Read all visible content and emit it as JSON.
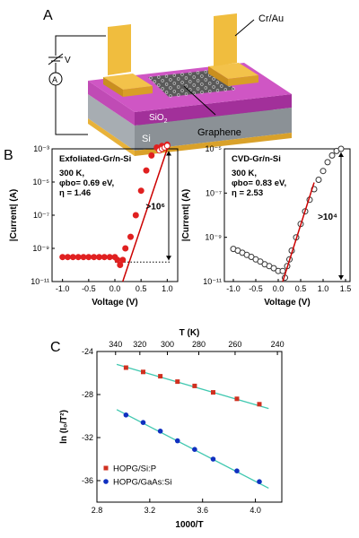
{
  "panels": {
    "a": {
      "letter": "A",
      "labels": {
        "contacts": "Cr/Au",
        "voltage": "V",
        "ammeter": "A",
        "oxide": "SiO",
        "oxide_sub": "2",
        "substrate": "Si",
        "sheet": "Graphene"
      },
      "colors": {
        "gold": "#e8b23a",
        "oxide": "#b23ea8",
        "silicon": "#9aa0a6",
        "sheet": "#555555"
      }
    },
    "b": {
      "letter": "B"
    },
    "c": {
      "letter": "C"
    }
  },
  "chart_data": [
    {
      "type": "scatter",
      "panel": "B-left",
      "title": "Exfoliated-Gr/n-Si",
      "annotations": [
        "300 K,",
        "φbo= 0.69 eV,",
        "η = 1.46",
        ">10⁶"
      ],
      "xlabel": "Voltage (V)",
      "ylabel": "|Current| (A)",
      "xlim": [
        -1.2,
        1.2
      ],
      "ylim_log10": [
        -11,
        -3
      ],
      "x_ticks": [
        "-1.0",
        "-0.5",
        "0.0",
        "0.5",
        "1.0"
      ],
      "y_ticks": [
        "10⁻¹¹",
        "10⁻⁹",
        "10⁻⁷",
        "10⁻⁵",
        "10⁻³"
      ],
      "series": [
        {
          "color": "#e02020",
          "marker": "filled-circle",
          "x": [
            -1.0,
            -0.9,
            -0.8,
            -0.7,
            -0.6,
            -0.5,
            -0.4,
            -0.3,
            -0.2,
            -0.1,
            0.0,
            0.05,
            0.1,
            0.15,
            0.2,
            0.3,
            0.4,
            0.5,
            0.6,
            0.7,
            0.8,
            0.9,
            1.0
          ],
          "y": [
            3e-10,
            3e-10,
            3e-10,
            3e-10,
            3e-10,
            3e-10,
            3e-10,
            3e-10,
            3e-10,
            3e-10,
            3e-10,
            2e-10,
            1e-10,
            2e-10,
            1e-09,
            5e-09,
            1e-07,
            3e-06,
            5e-05,
            0.0004,
            0.0012,
            0.0015,
            0.0018
          ]
        },
        {
          "color": "#ffffff",
          "marker": "open-circle",
          "x": [
            0.85,
            0.9,
            0.95,
            1.0
          ],
          "y": [
            0.0008,
            0.001,
            0.0012,
            0.0015
          ]
        }
      ],
      "fit_line": {
        "x": [
          0.15,
          1.0
        ],
        "y": [
          1e-11,
          0.001
        ],
        "color": "#cc0000"
      },
      "baseline_dotted": {
        "y": 1.5e-10
      }
    },
    {
      "type": "scatter",
      "panel": "B-right",
      "title": "CVD-Gr/n-Si",
      "annotations": [
        "300 K,",
        "φbo= 0.83 eV,",
        "η = 2.53",
        ">10⁴"
      ],
      "xlabel": "Voltage (V)",
      "ylabel": "|Current| (A)",
      "xlim": [
        -1.2,
        1.6
      ],
      "ylim_log10": [
        -11,
        -5
      ],
      "x_ticks": [
        "-1.0",
        "-0.5",
        "0.0",
        "0.5",
        "1.0",
        "1.5"
      ],
      "y_ticks": [
        "10⁻¹¹",
        "10⁻⁹",
        "10⁻⁷",
        "10⁻⁵"
      ],
      "series": [
        {
          "color": "#333333",
          "marker": "open-circle",
          "x": [
            -1.0,
            -0.9,
            -0.8,
            -0.7,
            -0.6,
            -0.5,
            -0.4,
            -0.3,
            -0.2,
            -0.1,
            0.0,
            0.1,
            0.15,
            0.2,
            0.25,
            0.3,
            0.4,
            0.5,
            0.6,
            0.7,
            0.8,
            0.9,
            1.0,
            1.1,
            1.2,
            1.3,
            1.4
          ],
          "y": [
            3e-10,
            2.5e-10,
            2e-10,
            1.6e-10,
            1.3e-10,
            1e-10,
            8e-11,
            6e-11,
            5e-11,
            4e-11,
            3e-11,
            3e-11,
            1.5e-11,
            5e-11,
            1e-10,
            2.5e-10,
            1e-09,
            4e-09,
            1.5e-08,
            5e-08,
            1.5e-07,
            4e-07,
            1e-06,
            2.5e-06,
            5e-06,
            8e-06,
            1e-05
          ]
        }
      ],
      "fit_line": {
        "x": [
          0.1,
          0.8
        ],
        "y": [
          1e-11,
          3e-07
        ],
        "color": "#cc0000"
      },
      "baseline_dotted": {
        "y": 1e-11
      }
    },
    {
      "type": "scatter",
      "panel": "C",
      "xlabel": "1000/T",
      "ylabel": "ln (I₀/T²)",
      "top_xlabel": "T (K)",
      "xlim": [
        2.8,
        4.2
      ],
      "ylim": [
        -38,
        -24
      ],
      "x_ticks": [
        "2.8",
        "3.2",
        "3.6",
        "4.0"
      ],
      "top_ticks": [
        "340",
        "320",
        "300",
        "280",
        "260",
        "240"
      ],
      "y_ticks": [
        "-24",
        "-28",
        "-32",
        "-36"
      ],
      "legend_position": "bottom-left",
      "series": [
        {
          "name": "HOPG/Si:P",
          "color": "#d03020",
          "marker": "square",
          "x": [
            3.02,
            3.15,
            3.28,
            3.41,
            3.54,
            3.68,
            3.86,
            4.03
          ],
          "y": [
            -25.5,
            -25.9,
            -26.3,
            -26.8,
            -27.2,
            -27.8,
            -28.4,
            -28.9
          ]
        },
        {
          "name": "HOPG/GaAs:Si",
          "color": "#1030c0",
          "marker": "circle",
          "x": [
            3.02,
            3.15,
            3.28,
            3.41,
            3.54,
            3.68,
            3.86,
            4.03
          ],
          "y": [
            -29.9,
            -30.6,
            -31.4,
            -32.3,
            -33.1,
            -34.0,
            -35.1,
            -36.1
          ]
        }
      ],
      "fit_lines": [
        {
          "x": [
            2.95,
            4.1
          ],
          "y": [
            -25.2,
            -29.3
          ],
          "color": "#40c8b0"
        },
        {
          "x": [
            2.95,
            4.1
          ],
          "y": [
            -29.4,
            -36.7
          ],
          "color": "#40c8b0"
        }
      ]
    }
  ]
}
